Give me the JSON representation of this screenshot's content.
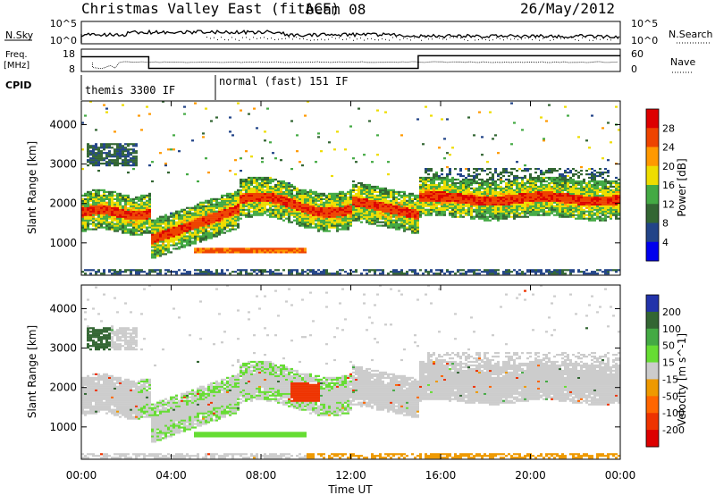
{
  "header": {
    "station": "Christmas Valley East (fitACF)",
    "beam": "beam 08",
    "date": "26/May/2012"
  },
  "strip_sky": {
    "left_label": "N.Sky",
    "right_label": "N.Search",
    "left_ticks": [
      "10^5",
      "10^0"
    ],
    "right_ticks": [
      "10^5",
      "10^0"
    ]
  },
  "strip_freq": {
    "left_label_1": "Freq.",
    "left_label_2": "[MHz]",
    "right_label": "Nave",
    "left_ticks": [
      "18",
      "8"
    ],
    "right_ticks": [
      "60",
      "0"
    ],
    "freq_steps": [
      {
        "from": 0,
        "to": 3.0,
        "mhz": 15.5
      },
      {
        "from": 3.0,
        "to": 15.0,
        "mhz": 9.6
      },
      {
        "from": 15.0,
        "to": 24.0,
        "mhz": 16.0
      }
    ]
  },
  "cpid": {
    "label": "CPID",
    "modes": [
      {
        "label": "themis 3300 IF",
        "start": 0.0,
        "end": 6.0
      },
      {
        "label": "normal (fast) 151 IF",
        "start": 6.0,
        "end": 24.0
      }
    ]
  },
  "chart_data": [
    {
      "type": "heatmap",
      "quantity": "Power",
      "ylabel": "Slant Range [km]",
      "xlabel": "",
      "ylim": [
        180,
        4600
      ],
      "xlim": [
        0,
        24
      ],
      "yticks": [
        "1000",
        "2000",
        "3000",
        "4000"
      ],
      "colorbar": {
        "label": "Power [dB]",
        "levels": [
          "28",
          "24",
          "20",
          "16",
          "12",
          "8",
          "4"
        ],
        "colors": [
          "#dd0000",
          "#ee4400",
          "#ff9900",
          "#eedd00",
          "#44aa44",
          "#336633",
          "#224488",
          "#0000ee"
        ]
      }
    },
    {
      "type": "heatmap",
      "quantity": "Velocity",
      "ylabel": "Slant Range [km]",
      "xlabel": "Time UT",
      "ylim": [
        180,
        4600
      ],
      "xlim": [
        0,
        24
      ],
      "yticks": [
        "1000",
        "2000",
        "3000",
        "4000"
      ],
      "xticks": [
        "00:00",
        "04:00",
        "08:00",
        "12:00",
        "16:00",
        "20:00",
        "00:00"
      ],
      "colorbar": {
        "label": "Velocity [m s^-1]",
        "levels": [
          "200",
          "100",
          "50",
          "15",
          "-15",
          "-50",
          "-100",
          "-200"
        ],
        "colors": [
          "#2233aa",
          "#336633",
          "#44aa44",
          "#66dd33",
          "#cccccc",
          "#ee9900",
          "#ff6600",
          "#ee3300",
          "#dd0000"
        ]
      }
    }
  ]
}
